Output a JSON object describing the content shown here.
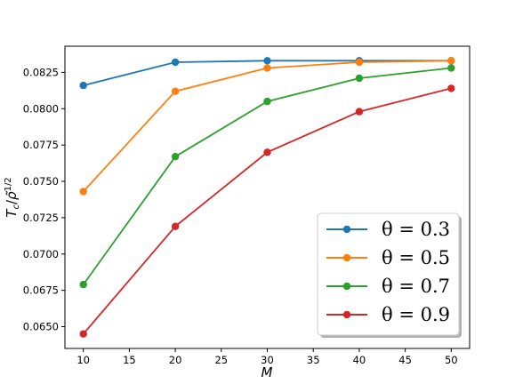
{
  "chart_data": {
    "type": "line",
    "title": "",
    "xlabel": "M",
    "ylabel": "T_c / ρ̃^(1/2)",
    "x": [
      10,
      20,
      30,
      40,
      50
    ],
    "xlim": [
      8,
      52
    ],
    "ylim": [
      0.0635,
      0.0843
    ],
    "xticks": [
      10,
      15,
      20,
      25,
      30,
      35,
      40,
      45,
      50
    ],
    "yticks": [
      0.065,
      0.0675,
      0.07,
      0.0725,
      0.075,
      0.0775,
      0.08,
      0.0825
    ],
    "ytick_labels": [
      "0.0650",
      "0.0675",
      "0.0700",
      "0.0725",
      "0.0750",
      "0.0775",
      "0.0800",
      "0.0825"
    ],
    "grid": false,
    "legend_position": "lower-right",
    "series": [
      {
        "name": "θ = 0.3",
        "color": "#1f77b4",
        "values": [
          0.0816,
          0.0832,
          0.0833,
          0.0833,
          0.0833
        ]
      },
      {
        "name": "θ = 0.5",
        "color": "#ff7f0e",
        "values": [
          0.0743,
          0.0812,
          0.0828,
          0.0832,
          0.0833
        ]
      },
      {
        "name": "θ = 0.7",
        "color": "#2ca02c",
        "values": [
          0.0679,
          0.0767,
          0.0805,
          0.0821,
          0.0828
        ]
      },
      {
        "name": "θ = 0.9",
        "color": "#d62728",
        "values": [
          0.0645,
          0.0719,
          0.077,
          0.0798,
          0.0814
        ]
      }
    ]
  }
}
